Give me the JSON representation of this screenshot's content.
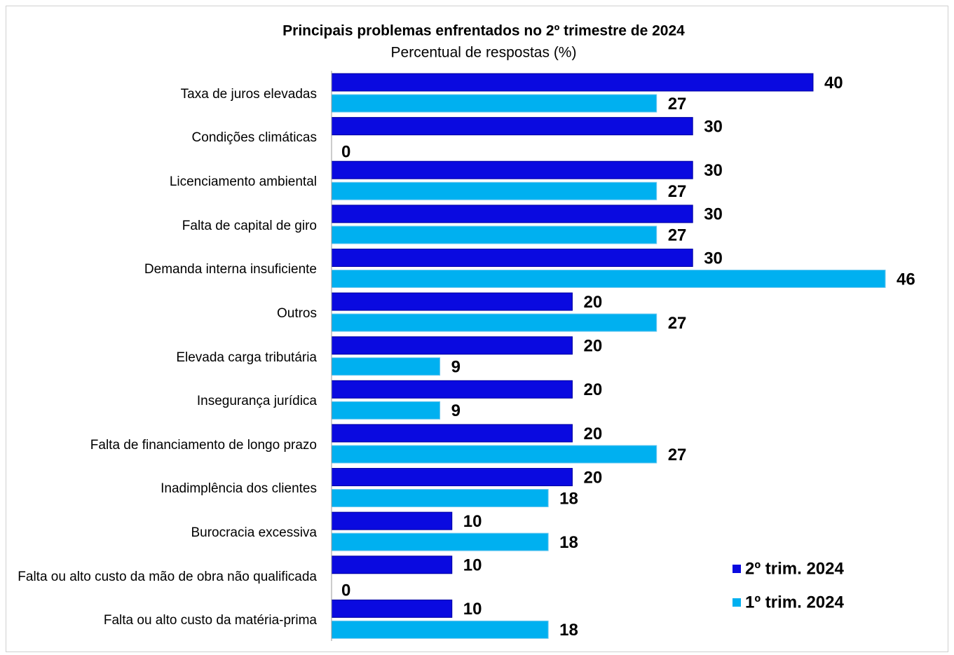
{
  "chart_data": {
    "type": "bar",
    "orientation": "horizontal",
    "title": "Principais problemas enfrentados no 2º trimestre de 2024",
    "subtitle": "Percentual de respostas (%)",
    "categories": [
      "Taxa de juros elevadas",
      "Condições climáticas",
      "Licenciamento ambiental",
      "Falta de capital de giro",
      "Demanda interna insuficiente",
      "Outros",
      "Elevada carga tributária",
      "Insegurança jurídica",
      "Falta de financiamento de longo prazo",
      "Inadimplência dos clientes",
      "Burocracia excessiva",
      "Falta ou alto custo da mão de obra não qualificada",
      "Falta ou alto custo da matéria-prima"
    ],
    "series": [
      {
        "name": "2º trim. 2024",
        "color": "#0a0ae0",
        "values": [
          40,
          30,
          30,
          30,
          30,
          20,
          20,
          20,
          20,
          20,
          10,
          10,
          10
        ]
      },
      {
        "name": "1º trim. 2024",
        "color": "#00b0f0",
        "values": [
          27,
          0,
          27,
          27,
          46,
          27,
          9,
          9,
          27,
          18,
          18,
          0,
          18
        ]
      }
    ],
    "xlim": [
      0,
      46
    ],
    "legend": "lower right"
  }
}
